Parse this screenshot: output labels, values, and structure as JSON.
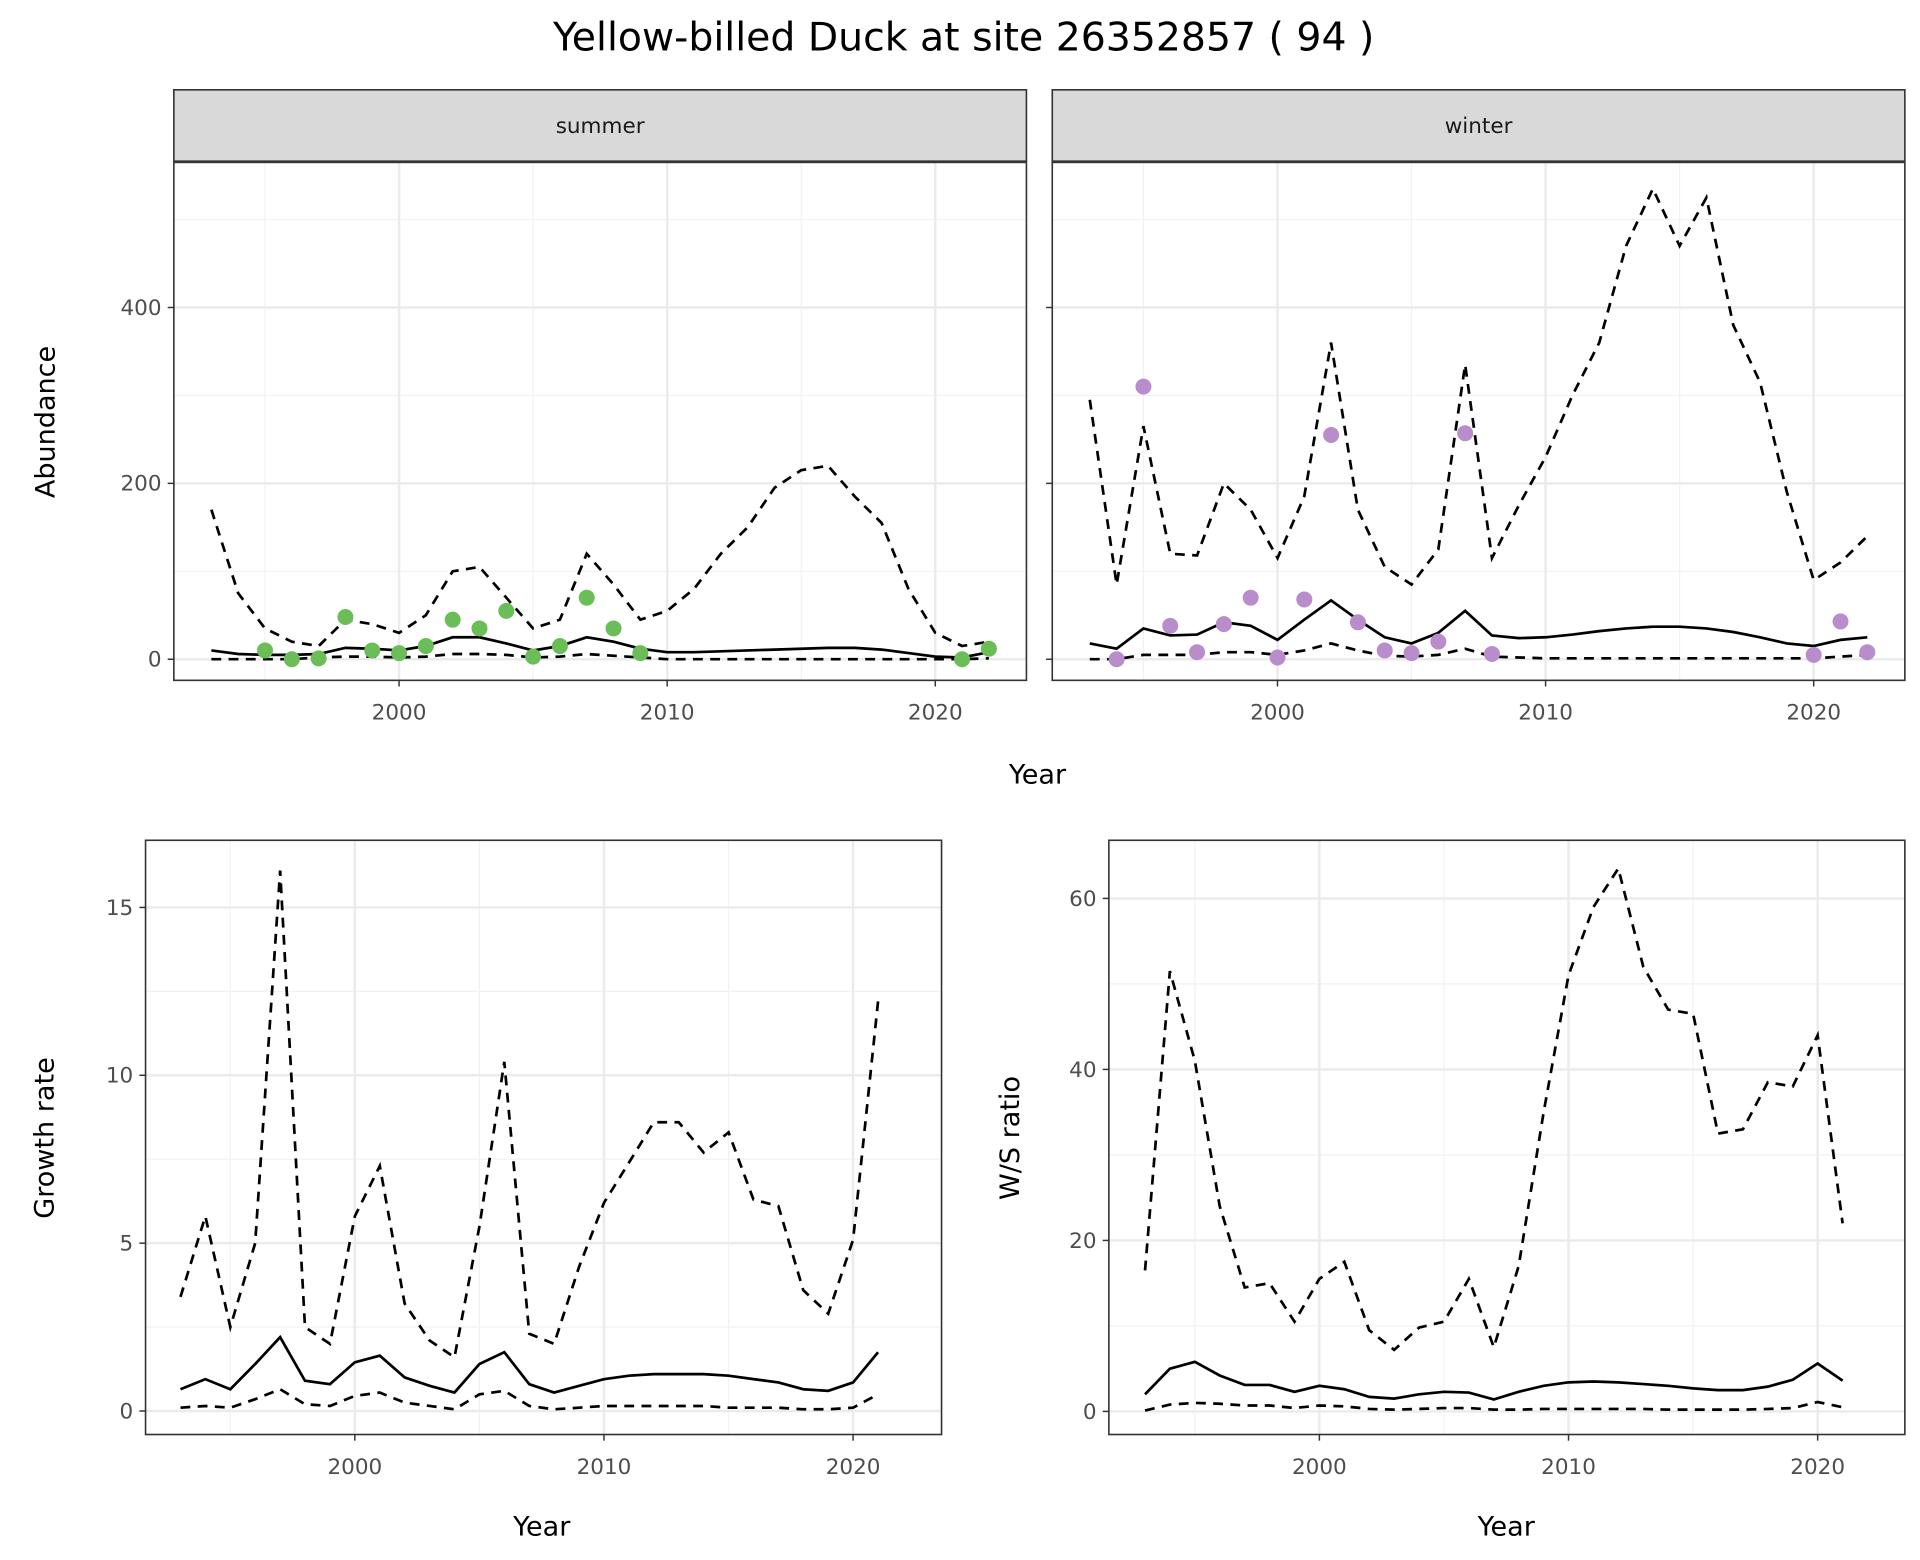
{
  "title": "Yellow-billed Duck at site 26352857 ( 94 )",
  "colors": {
    "summer": "#6bbd58",
    "winter": "#b98ccb",
    "line": "#000000"
  },
  "chart_data": [
    {
      "type": "line",
      "panel": "summer",
      "strip": "summer",
      "ylabel": "Abundance",
      "xlabel": "Year",
      "xlim": [
        1991.6,
        2023.4
      ],
      "ylim": [
        -24,
        565
      ],
      "xticks": [
        2000,
        2010,
        2020
      ],
      "yticks": [
        0,
        200,
        400
      ],
      "x": [
        1993,
        1994,
        1995,
        1996,
        1997,
        1998,
        1999,
        2000,
        2001,
        2002,
        2003,
        2004,
        2005,
        2006,
        2007,
        2008,
        2009,
        2010,
        2011,
        2012,
        2013,
        2014,
        2015,
        2016,
        2017,
        2018,
        2019,
        2020,
        2021,
        2022
      ],
      "series": [
        {
          "name": "upper",
          "style": "dashed",
          "values": [
            170,
            75,
            35,
            20,
            15,
            45,
            40,
            30,
            50,
            100,
            105,
            70,
            35,
            45,
            120,
            85,
            45,
            55,
            80,
            120,
            150,
            195,
            215,
            220,
            185,
            155,
            80,
            30,
            15,
            20
          ]
        },
        {
          "name": "mean",
          "style": "solid",
          "values": [
            10,
            6,
            5,
            5,
            6,
            13,
            12,
            10,
            15,
            25,
            25,
            18,
            10,
            15,
            25,
            20,
            12,
            8,
            8,
            9,
            10,
            11,
            12,
            13,
            13,
            11,
            7,
            3,
            2,
            8
          ]
        },
        {
          "name": "lower",
          "style": "dashed",
          "values": [
            0,
            0,
            0,
            0,
            2,
            3,
            3,
            2,
            3,
            6,
            6,
            5,
            2,
            3,
            6,
            4,
            2,
            0,
            0,
            0,
            0,
            0,
            0,
            0,
            0,
            0,
            0,
            0,
            0,
            1
          ]
        }
      ],
      "points": {
        "x": [
          1995,
          1996,
          1997,
          1998,
          1999,
          2000,
          2001,
          2002,
          2003,
          2004,
          2005,
          2006,
          2007,
          2008,
          2009,
          2021,
          2022
        ],
        "y": [
          10,
          0,
          1,
          48,
          10,
          7,
          15,
          45,
          35,
          55,
          3,
          15,
          70,
          35,
          7,
          0,
          12
        ]
      }
    },
    {
      "type": "line",
      "panel": "winter",
      "strip": "winter",
      "ylabel": "",
      "xlabel": "Year",
      "xlim": [
        1991.6,
        2023.4
      ],
      "ylim": [
        -24,
        565
      ],
      "xticks": [
        2000,
        2010,
        2020
      ],
      "yticks": [
        0,
        200,
        400
      ],
      "x": [
        1993,
        1994,
        1995,
        1996,
        1997,
        1998,
        1999,
        2000,
        2001,
        2002,
        2003,
        2004,
        2005,
        2006,
        2007,
        2008,
        2009,
        2010,
        2011,
        2012,
        2013,
        2014,
        2015,
        2016,
        2017,
        2018,
        2019,
        2020,
        2021,
        2022
      ],
      "series": [
        {
          "name": "upper",
          "style": "dashed",
          "values": [
            295,
            85,
            265,
            120,
            118,
            200,
            170,
            115,
            185,
            360,
            170,
            105,
            85,
            125,
            335,
            115,
            175,
            230,
            300,
            360,
            470,
            535,
            470,
            525,
            380,
            315,
            190,
            90,
            110,
            140
          ]
        },
        {
          "name": "mean",
          "style": "solid",
          "values": [
            18,
            12,
            35,
            27,
            28,
            42,
            38,
            22,
            45,
            67,
            45,
            25,
            18,
            30,
            55,
            27,
            24,
            25,
            28,
            32,
            35,
            37,
            37,
            35,
            31,
            25,
            18,
            15,
            22,
            25
          ]
        },
        {
          "name": "lower",
          "style": "dashed",
          "values": [
            0,
            0,
            5,
            5,
            5,
            8,
            8,
            5,
            10,
            18,
            10,
            4,
            3,
            5,
            12,
            3,
            2,
            1,
            1,
            1,
            1,
            1,
            1,
            1,
            1,
            1,
            1,
            1,
            3,
            5
          ]
        }
      ],
      "points": {
        "x": [
          1994,
          1995,
          1996,
          1997,
          1998,
          1999,
          2000,
          2001,
          2002,
          2003,
          2004,
          2005,
          2006,
          2007,
          2008,
          2020,
          2021,
          2022
        ],
        "y": [
          0,
          310,
          38,
          8,
          40,
          70,
          2,
          68,
          255,
          42,
          10,
          7,
          20,
          257,
          6,
          5,
          43,
          8
        ]
      }
    },
    {
      "type": "line",
      "panel": "growth",
      "ylabel": "Growth rate",
      "xlabel": "Year",
      "xlim": [
        1991.6,
        2023.55
      ],
      "ylim": [
        -0.7,
        17.0
      ],
      "xticks": [
        2000,
        2010,
        2020
      ],
      "yticks": [
        0,
        5,
        10,
        15
      ],
      "x": [
        1993,
        1994,
        1995,
        1996,
        1997,
        1998,
        1999,
        2000,
        2001,
        2002,
        2003,
        2004,
        2005,
        2006,
        2007,
        2008,
        2009,
        2010,
        2011,
        2012,
        2013,
        2014,
        2015,
        2016,
        2017,
        2018,
        2019,
        2020,
        2021
      ],
      "series": [
        {
          "name": "upper",
          "style": "dashed",
          "values": [
            3.4,
            5.8,
            2.5,
            5.0,
            16.1,
            2.5,
            2.0,
            5.8,
            7.3,
            3.2,
            2.1,
            1.6,
            5.5,
            10.4,
            2.3,
            2.0,
            4.3,
            6.2,
            7.4,
            8.6,
            8.6,
            7.7,
            8.3,
            6.3,
            6.1,
            3.6,
            2.9,
            5.1,
            12.2
          ]
        },
        {
          "name": "mean",
          "style": "solid",
          "values": [
            0.65,
            0.95,
            0.65,
            1.4,
            2.2,
            0.9,
            0.8,
            1.45,
            1.65,
            1.0,
            0.75,
            0.55,
            1.4,
            1.75,
            0.8,
            0.55,
            0.75,
            0.95,
            1.05,
            1.1,
            1.1,
            1.1,
            1.05,
            0.95,
            0.85,
            0.65,
            0.6,
            0.85,
            1.75
          ]
        },
        {
          "name": "lower",
          "style": "dashed",
          "values": [
            0.1,
            0.15,
            0.1,
            0.35,
            0.65,
            0.2,
            0.15,
            0.45,
            0.55,
            0.25,
            0.15,
            0.05,
            0.5,
            0.6,
            0.15,
            0.05,
            0.1,
            0.15,
            0.15,
            0.15,
            0.15,
            0.15,
            0.1,
            0.1,
            0.1,
            0.05,
            0.05,
            0.1,
            0.5
          ]
        }
      ]
    },
    {
      "type": "line",
      "panel": "ratio",
      "ylabel": "W/S ratio",
      "xlabel": "Year",
      "xlim": [
        1991.55,
        2023.5
      ],
      "ylim": [
        -2.7,
        66.8
      ],
      "xticks": [
        2000,
        2010,
        2020
      ],
      "yticks": [
        0,
        20,
        40,
        60
      ],
      "x": [
        1993,
        1994,
        1995,
        1996,
        1997,
        1998,
        1999,
        2000,
        2001,
        2002,
        2003,
        2004,
        2005,
        2006,
        2007,
        2008,
        2009,
        2010,
        2011,
        2012,
        2013,
        2014,
        2015,
        2016,
        2017,
        2018,
        2019,
        2020,
        2021
      ],
      "series": [
        {
          "name": "upper",
          "style": "dashed",
          "values": [
            16.5,
            51.5,
            41,
            24,
            14.5,
            15,
            10.5,
            15.5,
            17.5,
            9.5,
            7.2,
            9.8,
            10.5,
            15.5,
            7.5,
            17,
            35,
            51,
            59,
            63.5,
            52,
            47,
            46.5,
            32.5,
            33,
            38.5,
            38,
            44,
            22
          ]
        },
        {
          "name": "mean",
          "style": "solid",
          "values": [
            2,
            5,
            5.8,
            4.2,
            3.1,
            3.1,
            2.3,
            3,
            2.6,
            1.7,
            1.5,
            2,
            2.3,
            2.2,
            1.4,
            2.3,
            3,
            3.4,
            3.5,
            3.4,
            3.2,
            3,
            2.7,
            2.5,
            2.5,
            2.9,
            3.7,
            5.6,
            3.6
          ]
        },
        {
          "name": "lower",
          "style": "dashed",
          "values": [
            0.1,
            0.8,
            1.0,
            0.9,
            0.7,
            0.7,
            0.4,
            0.7,
            0.6,
            0.3,
            0.2,
            0.3,
            0.4,
            0.4,
            0.2,
            0.2,
            0.3,
            0.3,
            0.3,
            0.3,
            0.3,
            0.2,
            0.2,
            0.2,
            0.2,
            0.3,
            0.4,
            1.1,
            0.5
          ]
        }
      ]
    }
  ]
}
